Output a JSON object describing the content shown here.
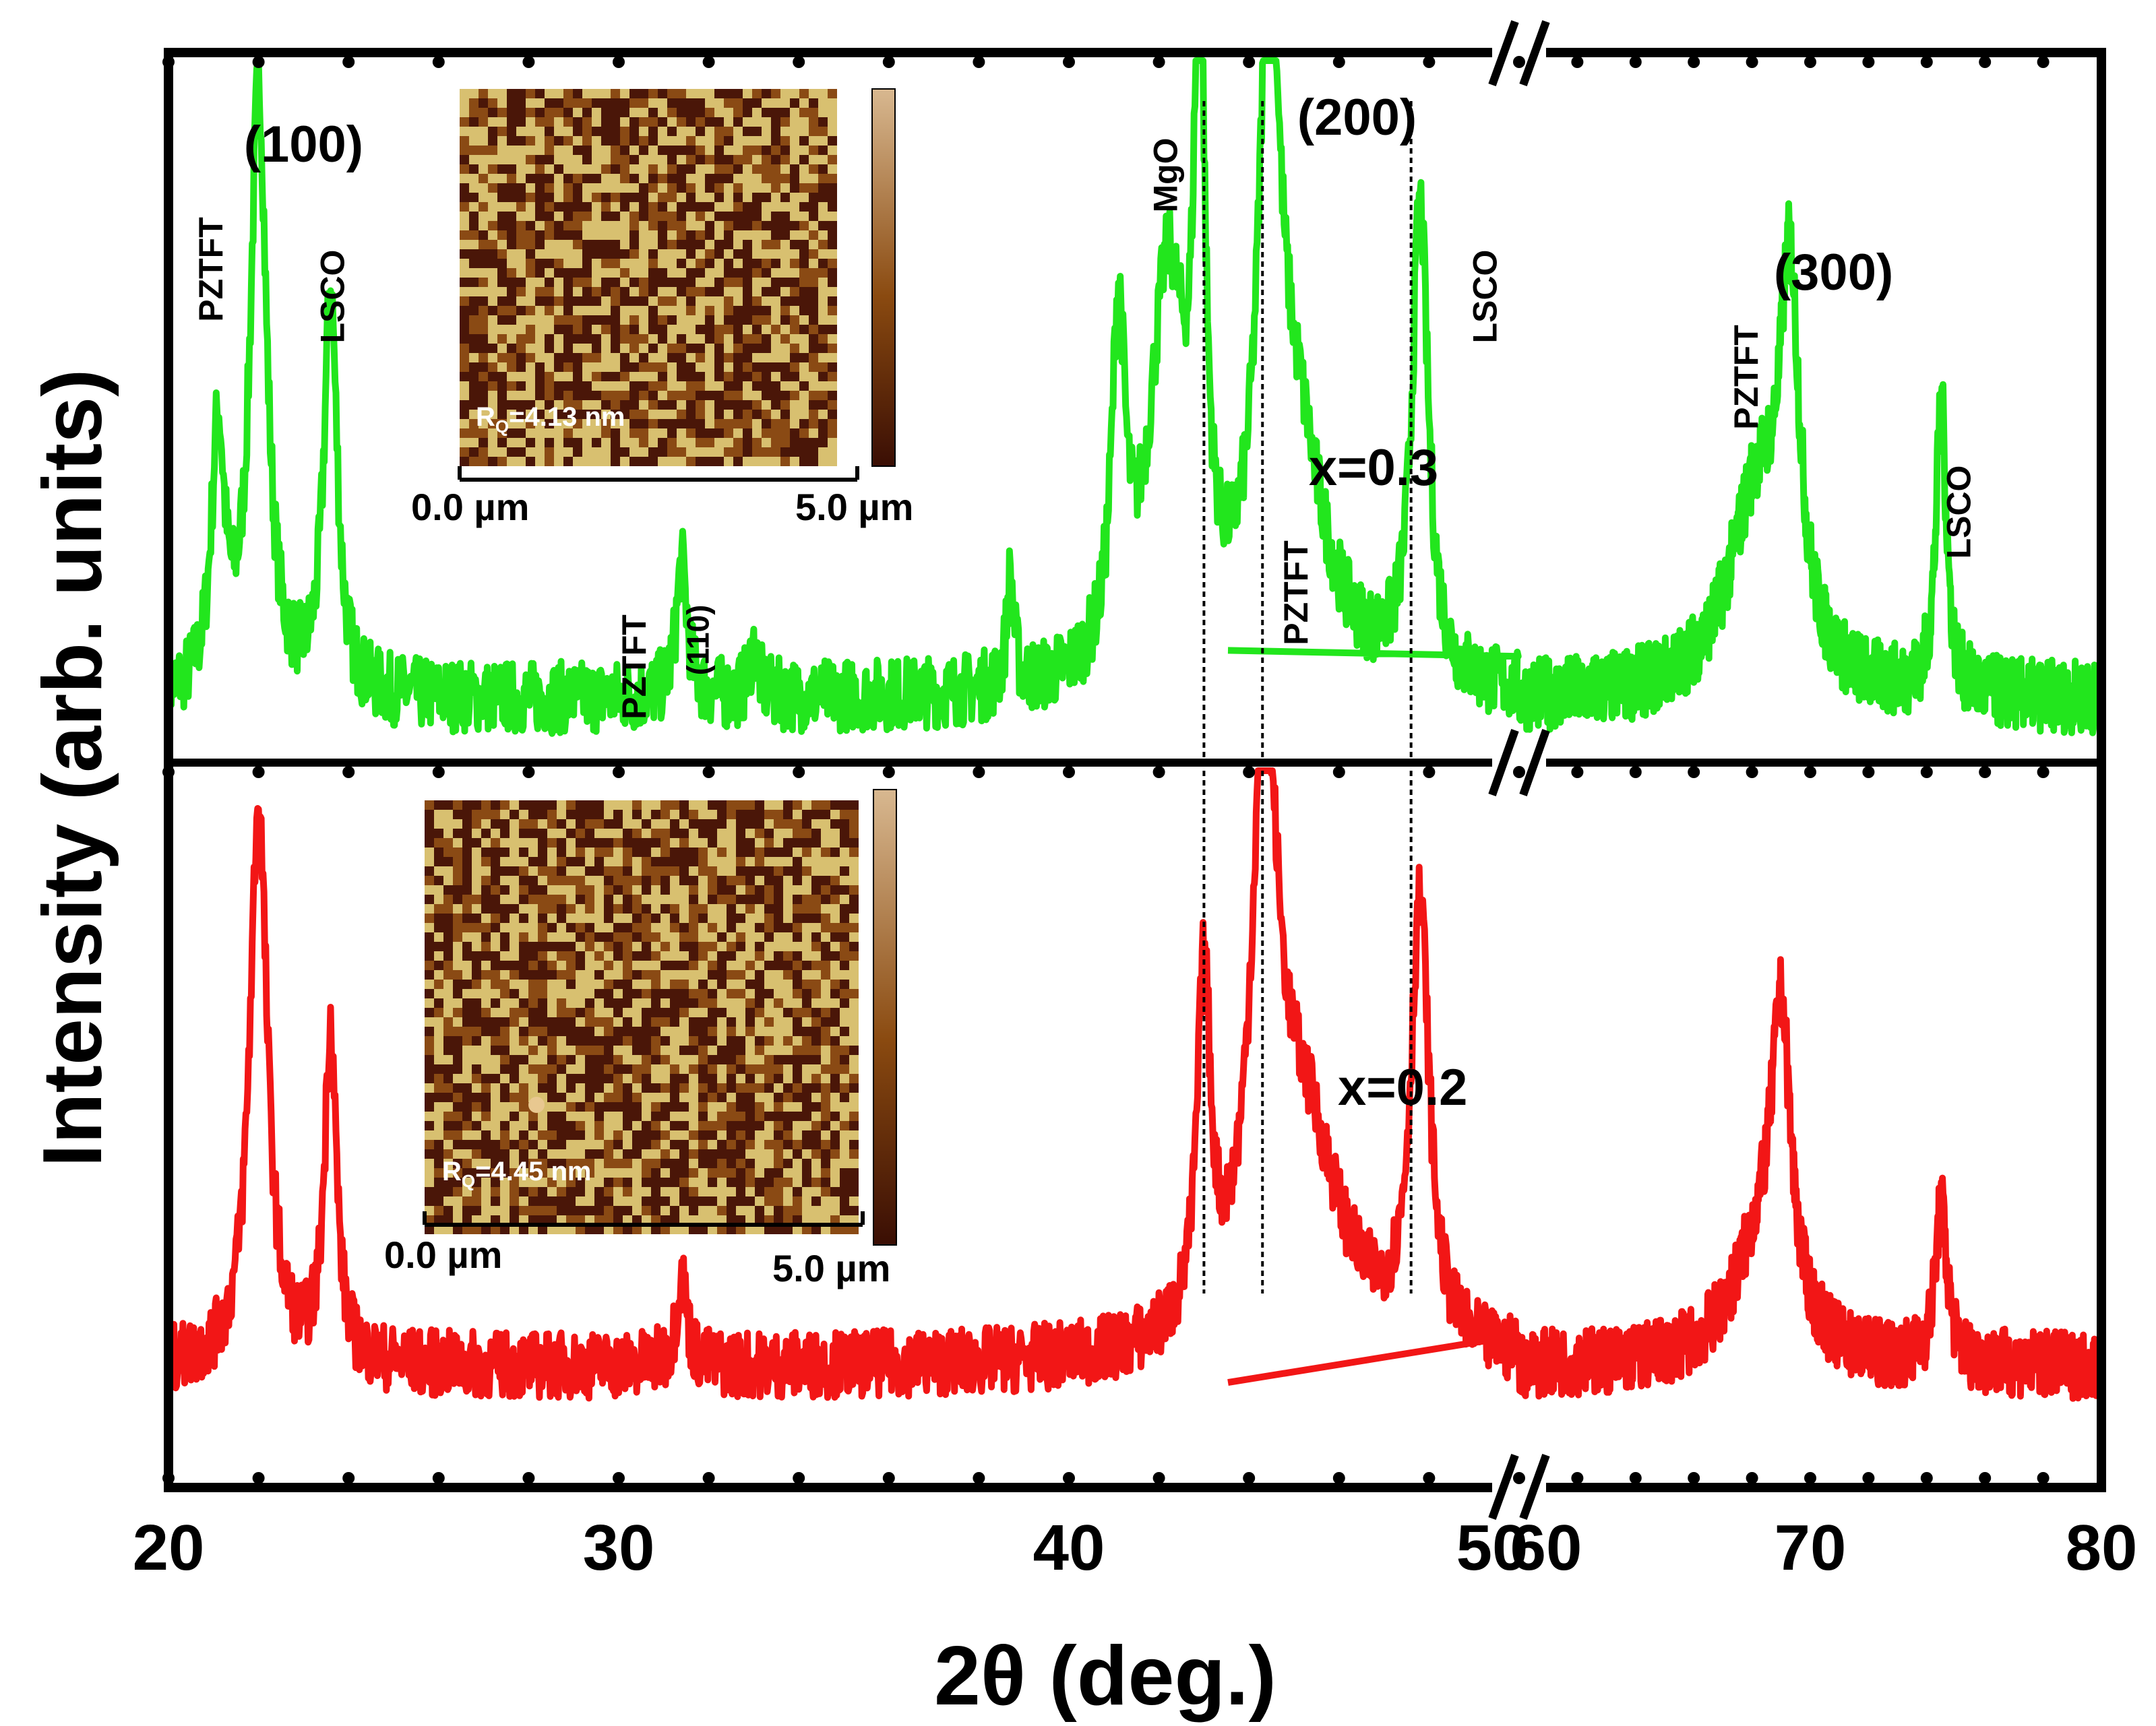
{
  "chart_data": {
    "type": "line",
    "title": "",
    "xlabel": "2θ (deg.)",
    "ylabel": "Intensity (arb. units)",
    "xlim": [
      20,
      80
    ],
    "axis_break": {
      "from": 50,
      "to": 60
    },
    "x_ticks": [
      "20",
      "30",
      "40",
      "50",
      "60",
      "70",
      "80"
    ],
    "reference_lines_x": [
      43.0,
      44.3,
      47.6
    ],
    "series": [
      {
        "name": "x=0.3",
        "color": "#22e61d",
        "peaks": [
          {
            "x": 21.1,
            "h": 0.42,
            "w": 0.18
          },
          {
            "x": 22.0,
            "h": 1.0,
            "w": 0.22
          },
          {
            "x": 23.6,
            "h": 0.66,
            "w": 0.18
          },
          {
            "x": 31.4,
            "h": 0.22,
            "w": 0.15
          },
          {
            "x": 33.0,
            "h": 0.08,
            "w": 0.12
          },
          {
            "x": 38.7,
            "h": 0.18,
            "w": 0.1
          },
          {
            "x": 41.1,
            "h": 0.55,
            "w": 0.18
          },
          {
            "x": 42.2,
            "h": 0.65,
            "w": 0.5
          },
          {
            "x": 42.9,
            "h": 1.0,
            "w": 0.14
          },
          {
            "x": 44.45,
            "h": 1.0,
            "w": 0.26
          },
          {
            "x": 45.0,
            "h": 0.4,
            "w": 0.8
          },
          {
            "x": 47.8,
            "h": 0.78,
            "w": 0.22
          },
          {
            "x": 68.2,
            "h": 0.33,
            "w": 1.2
          },
          {
            "x": 69.3,
            "h": 0.58,
            "w": 0.4
          },
          {
            "x": 74.5,
            "h": 0.48,
            "w": 0.22
          }
        ]
      },
      {
        "name": "x=0.2",
        "color": "#f21616",
        "peaks": [
          {
            "x": 22.0,
            "h": 1.0,
            "w": 0.24
          },
          {
            "x": 23.6,
            "h": 0.6,
            "w": 0.16
          },
          {
            "x": 31.4,
            "h": 0.16,
            "w": 0.14
          },
          {
            "x": 43.0,
            "h": 0.62,
            "w": 0.18
          },
          {
            "x": 44.35,
            "h": 1.0,
            "w": 0.34
          },
          {
            "x": 45.2,
            "h": 0.4,
            "w": 1.0
          },
          {
            "x": 47.8,
            "h": 0.78,
            "w": 0.25
          },
          {
            "x": 68.3,
            "h": 0.2,
            "w": 1.2
          },
          {
            "x": 69.0,
            "h": 0.52,
            "w": 0.4
          },
          {
            "x": 74.5,
            "h": 0.28,
            "w": 0.25
          }
        ]
      }
    ],
    "annotations": [
      {
        "panel": "top",
        "text": "PZTFT",
        "x": 21.2,
        "rotated": true
      },
      {
        "panel": "top",
        "text": "(100)",
        "x": 23.0,
        "rotated": false
      },
      {
        "panel": "top",
        "text": "LSCO",
        "x": 23.9,
        "rotated": true
      },
      {
        "panel": "top",
        "text": "PZTFT",
        "x": 30.6,
        "rotated": true
      },
      {
        "panel": "top",
        "text": "(110)",
        "x": 32.0,
        "rotated": true
      },
      {
        "panel": "top",
        "text": "MgO",
        "x": 42.4,
        "rotated": true
      },
      {
        "panel": "top",
        "text": "(200)",
        "x": 46.4,
        "rotated": false
      },
      {
        "panel": "top",
        "text": "PZTFT",
        "x": 45.3,
        "rotated": true
      },
      {
        "panel": "top",
        "text": "LSCO",
        "x": 49.5,
        "rotated": true
      },
      {
        "panel": "top",
        "text": "PZTFT",
        "x": 68.2,
        "rotated": true
      },
      {
        "panel": "top",
        "text": "(300)",
        "x": 70.8,
        "rotated": false
      },
      {
        "panel": "top",
        "text": "LSCO",
        "x": 75.5,
        "rotated": true
      },
      {
        "panel": "top",
        "text": "x=0.3",
        "x": 55.0,
        "rotated": false
      },
      {
        "panel": "bottom",
        "text": "x=0.2",
        "x": 56.0,
        "rotated": false
      }
    ]
  },
  "insets": [
    {
      "panel": "top",
      "roughness_label": "R",
      "roughness_sub": "Q",
      "roughness_value": "=4.13 nm",
      "scale_left": "0.0 µm",
      "scale_right": "5.0 µm",
      "colors": {
        "low": "#4a1608",
        "mid": "#8a4a14",
        "high": "#d8c070"
      }
    },
    {
      "panel": "bottom",
      "roughness_label": "R",
      "roughness_sub": "Q",
      "roughness_value": "=4.45 nm",
      "scale_left": "0.0 µm",
      "scale_right": "5.0 µm",
      "colors": {
        "low": "#4a1608",
        "mid": "#8a4a14",
        "high": "#d8c070"
      }
    }
  ]
}
